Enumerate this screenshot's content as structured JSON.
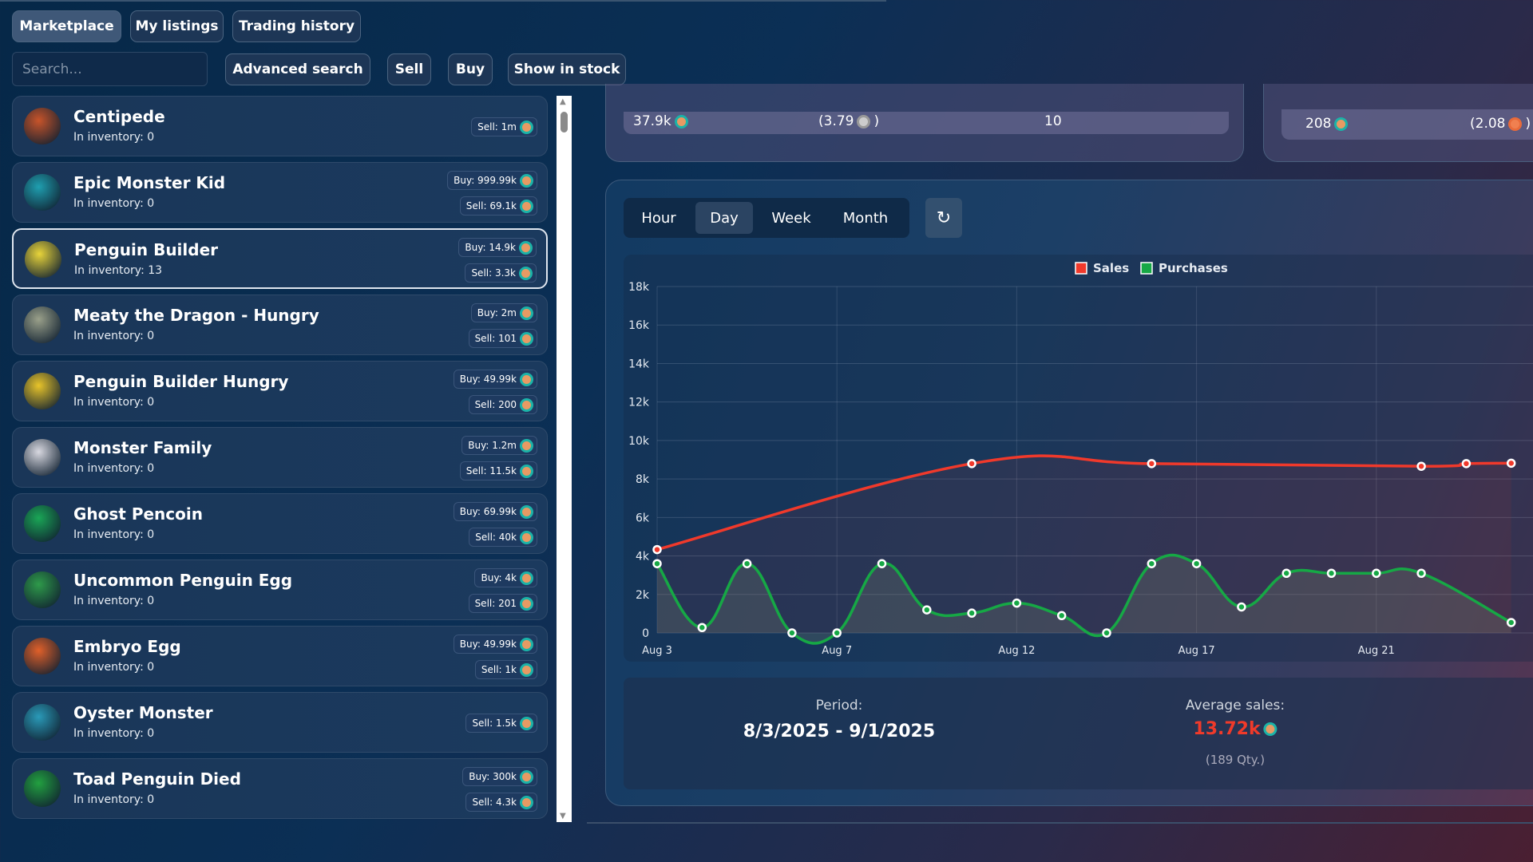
{
  "tabs": [
    {
      "label": "Marketplace",
      "active": true
    },
    {
      "label": "My listings"
    },
    {
      "label": "Trading history"
    }
  ],
  "toolbar": {
    "search_placeholder": "Search...",
    "advanced": "Advanced search",
    "sell": "Sell",
    "buy": "Buy",
    "stock": "Show in stock"
  },
  "items": [
    {
      "name": "Centipede",
      "inventory": "In inventory: 0",
      "buy": null,
      "sell": "Sell: 1m",
      "color": "#c8542a"
    },
    {
      "name": "Epic Monster Kid",
      "inventory": "In inventory: 0",
      "buy": "Buy: 999.99k",
      "sell": "Sell: 69.1k",
      "color": "#1f9fb0"
    },
    {
      "name": "Penguin Builder",
      "inventory": "In inventory: 13",
      "buy": "Buy: 14.9k",
      "sell": "Sell: 3.3k",
      "color": "#e8d43a",
      "selected": true
    },
    {
      "name": "Meaty the Dragon - Hungry",
      "inventory": "In inventory: 0",
      "buy": "Buy: 2m",
      "sell": "Sell: 101",
      "color": "#9aa08a"
    },
    {
      "name": "Penguin Builder Hungry",
      "inventory": "In inventory: 0",
      "buy": "Buy: 49.99k",
      "sell": "Sell: 200",
      "color": "#e8c42a"
    },
    {
      "name": "Monster Family",
      "inventory": "In inventory: 0",
      "buy": "Buy: 1.2m",
      "sell": "Sell: 11.5k",
      "color": "#d8d8e0"
    },
    {
      "name": "Ghost Pencoin",
      "inventory": "In inventory: 0",
      "buy": "Buy: 69.99k",
      "sell": "Sell: 40k",
      "color": "#1aa656"
    },
    {
      "name": "Uncommon Penguin Egg",
      "inventory": "In inventory: 0",
      "buy": "Buy: 4k",
      "sell": "Sell: 201",
      "color": "#2e9a4a"
    },
    {
      "name": "Embryo Egg",
      "inventory": "In inventory: 0",
      "buy": "Buy: 49.99k",
      "sell": "Sell: 1k",
      "color": "#e0602a"
    },
    {
      "name": "Oyster Monster",
      "inventory": "In inventory: 0",
      "buy": null,
      "sell": "Sell: 1.5k",
      "color": "#2a9ab8"
    },
    {
      "name": "Toad Penguin Died",
      "inventory": "In inventory: 0",
      "buy": "Buy: 300k",
      "sell": "Sell: 4.3k",
      "color": "#22a040"
    }
  ],
  "stats": {
    "card1": {
      "a": "37.9k",
      "b": "(3.79",
      "b_end": ")",
      "c": "10"
    },
    "card2": {
      "a": "208",
      "b": "(2.08",
      "b_end": ")"
    }
  },
  "range": {
    "options": [
      "Hour",
      "Day",
      "Week",
      "Month"
    ],
    "selected": "Day",
    "refresh_icon": "↻"
  },
  "summary": {
    "period_label": "Period:",
    "period": "8/3/2025 - 9/1/2025",
    "avg_label": "Average sales:",
    "avg": "13.72k",
    "qty": "(189 Qty.)",
    "avg_color": "#f03a2a"
  },
  "chart_data": {
    "type": "line",
    "x_tick_labels": [
      {
        "index": 0,
        "label": "Aug 3"
      },
      {
        "index": 4,
        "label": "Aug 7"
      },
      {
        "index": 8,
        "label": "Aug 12"
      },
      {
        "index": 12,
        "label": "Aug 17"
      },
      {
        "index": 16,
        "label": "Aug 21"
      }
    ],
    "y_ticks": [
      "0",
      "2k",
      "4k",
      "6k",
      "8k",
      "10k",
      "12k",
      "14k",
      "16k",
      "18k"
    ],
    "ylim": [
      0,
      18000
    ],
    "grid": true,
    "legend": "top-center",
    "series": [
      {
        "name": "Sales",
        "color": "#f0392b",
        "span_gaps": true,
        "values": [
          4330,
          null,
          null,
          null,
          null,
          null,
          null,
          8800,
          null,
          null,
          null,
          8800,
          null,
          null,
          null,
          null,
          null,
          8660,
          8800,
          8820
        ]
      },
      {
        "name": "Purchases",
        "color": "#16a845",
        "values": [
          3600,
          280,
          3600,
          0,
          0,
          3600,
          1200,
          1030,
          1550,
          900,
          0,
          3600,
          3600,
          1350,
          3100,
          3100,
          3100,
          3100,
          null,
          540
        ]
      }
    ]
  }
}
